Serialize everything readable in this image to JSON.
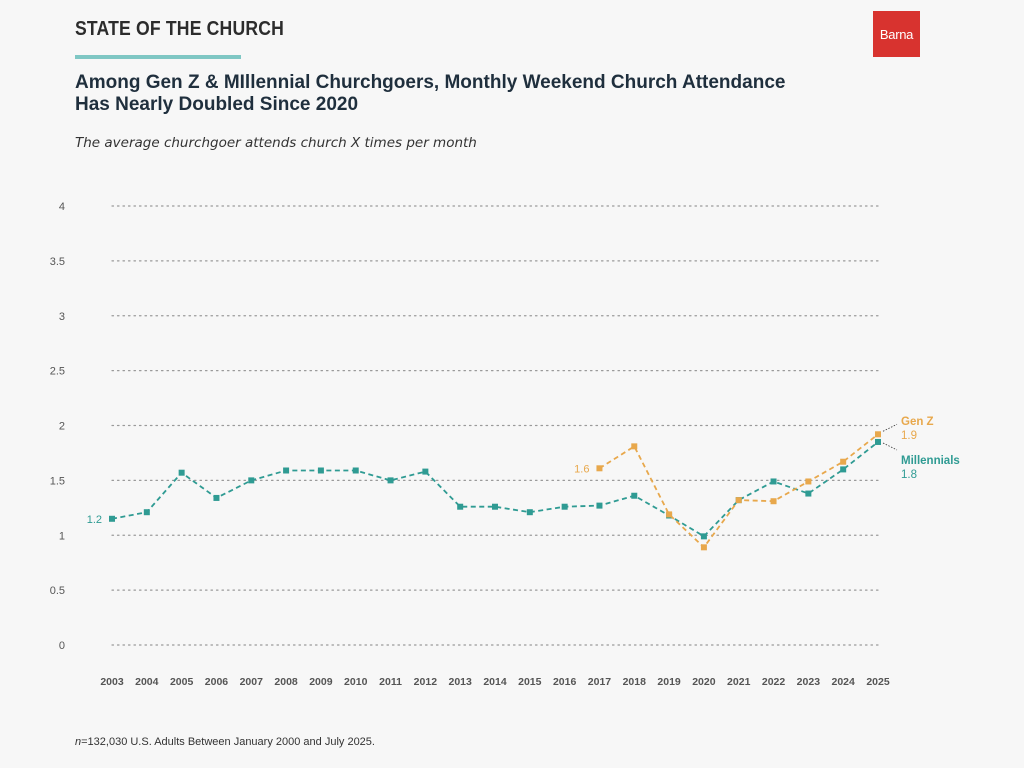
{
  "header": {
    "kicker": "STATE OF THE CHURCH",
    "logo_text": "Barna",
    "title_line1": "Among Gen Z & MIllennial Churchgoers, Monthly Weekend Church Attendance",
    "title_line2": "Has Nearly Doubled Since 2020",
    "subtitle": "The average churchgoer attends church X times per month"
  },
  "footnote": {
    "n_label": "n",
    "text": "=132,030 U.S. Adults Between January 2000 and July 2025."
  },
  "colors": {
    "gen_z": "#e8a84c",
    "millennials": "#2f9b93",
    "grid": "#9a9a9a",
    "axis_text": "#555555"
  },
  "chart_data": {
    "type": "line",
    "title": "Among Gen Z & MIllennial Churchgoers, Monthly Weekend Church Attendance Has Nearly Doubled Since 2020",
    "subtitle": "The average churchgoer attends church X times per month",
    "xlabel": "",
    "ylabel": "",
    "ylim": [
      0,
      4
    ],
    "yticks": [
      "0",
      "0.5",
      "1",
      "1.5",
      "2",
      "2.5",
      "3",
      "3.5",
      "4"
    ],
    "grid": true,
    "categories": [
      "2003",
      "2004",
      "2005",
      "2006",
      "2007",
      "2008",
      "2009",
      "2010",
      "2011",
      "2012",
      "2013",
      "2014",
      "2015",
      "2016",
      "2017",
      "2018",
      "2019",
      "2020",
      "2021",
      "2022",
      "2023",
      "2024",
      "2025"
    ],
    "series": [
      {
        "name": "Millennials",
        "end_label": "1.8",
        "start_label": "1.2",
        "values": [
          1.15,
          1.21,
          1.57,
          1.34,
          1.5,
          1.59,
          1.59,
          1.59,
          1.5,
          1.58,
          1.26,
          1.26,
          1.21,
          1.26,
          1.27,
          1.36,
          1.18,
          0.99,
          1.32,
          1.49,
          1.38,
          1.6,
          1.85
        ]
      },
      {
        "name": "Gen Z",
        "end_label": "1.9",
        "start_label": "1.6",
        "values": [
          null,
          null,
          null,
          null,
          null,
          null,
          null,
          null,
          null,
          null,
          null,
          null,
          null,
          null,
          1.61,
          1.81,
          1.19,
          0.89,
          1.32,
          1.31,
          1.49,
          1.67,
          1.92
        ]
      }
    ]
  }
}
